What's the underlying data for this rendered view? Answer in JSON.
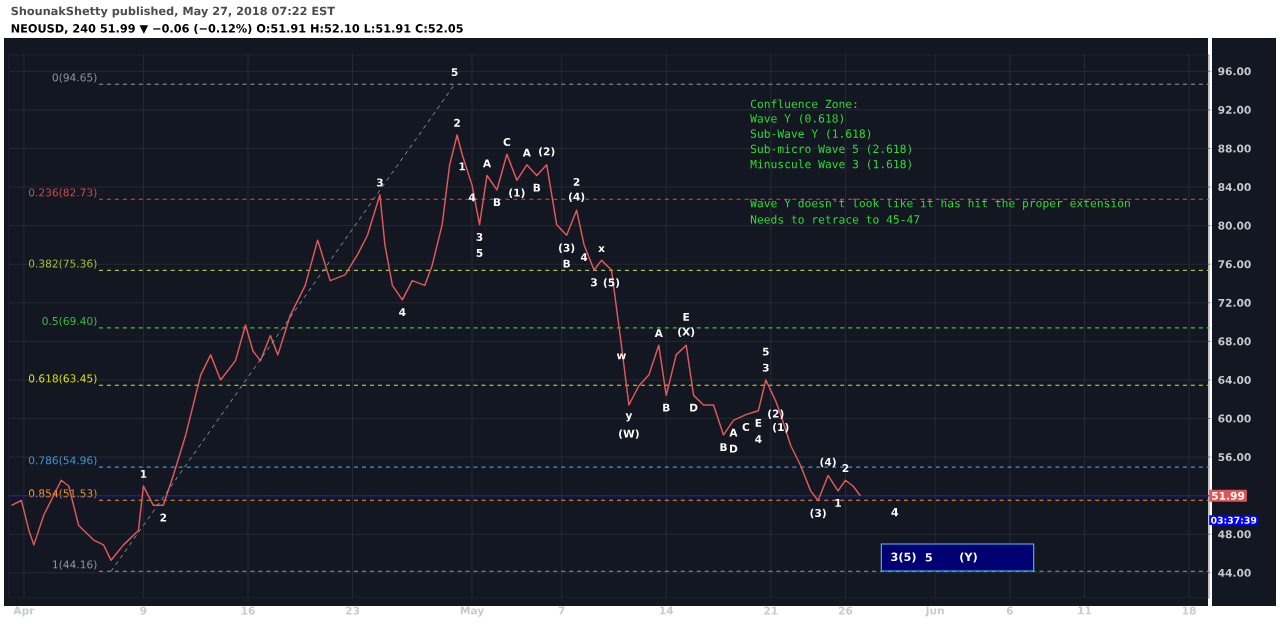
{
  "chart_data": {
    "type": "line",
    "title": "NEOUSD, 240  51.99 ▼ −0.06 (−0.12%)  O:51.91 H:52.10 L:51.91 C:52.05",
    "subtitle": "ShounakShetty published, May 27, 2018 07:22 EST",
    "x": [
      "2018-03-31T04:00",
      "2018-03-31T20:00",
      "2018-04-01T08:00",
      "2018-04-01T16:00",
      "2018-04-02T08:00",
      "2018-04-03T12:00",
      "2018-04-04T00:00",
      "2018-04-04T16:00",
      "2018-04-05T16:00",
      "2018-04-06T08:00",
      "2018-04-06T20:00",
      "2018-04-07T16:00",
      "2018-04-08T16:00",
      "2018-04-09T00:00",
      "2018-04-09T16:00",
      "2018-04-10T08:00",
      "2018-04-11T00:00",
      "2018-04-11T20:00",
      "2018-04-12T20:00",
      "2018-04-13T12:00",
      "2018-04-14T04:00",
      "2018-04-15T04:00",
      "2018-04-15T20:00",
      "2018-04-16T08:00",
      "2018-04-16T20:00",
      "2018-04-17T12:00",
      "2018-04-18T00:00",
      "2018-04-18T20:00",
      "2018-04-19T20:00",
      "2018-04-20T16:00",
      "2018-04-21T12:00",
      "2018-04-22T12:00",
      "2018-04-23T08:00",
      "2018-04-24T00:00",
      "2018-04-24T20:00",
      "2018-04-25T04:00",
      "2018-04-25T16:00",
      "2018-04-26T08:00",
      "2018-04-27T00:00",
      "2018-04-27T20:00",
      "2018-04-28T08:00",
      "2018-04-29T00:00",
      "2018-04-29T12:00",
      "2018-04-30T00:00",
      "2018-04-30T08:00",
      "2018-05-01T00:00",
      "2018-05-01T12:00",
      "2018-05-02T00:00",
      "2018-05-02T16:00",
      "2018-05-03T08:00",
      "2018-05-04T00:00",
      "2018-05-04T16:00",
      "2018-05-05T08:00",
      "2018-05-06T00:00",
      "2018-05-06T16:00",
      "2018-05-07T08:00",
      "2018-05-08T00:00",
      "2018-05-08T12:00",
      "2018-05-09T04:00",
      "2018-05-09T16:00",
      "2018-05-10T08:00",
      "2018-05-11T00:00",
      "2018-05-11T12:00",
      "2018-05-12T04:00",
      "2018-05-12T20:00",
      "2018-05-13T12:00",
      "2018-05-14T00:00",
      "2018-05-14T16:00",
      "2018-05-15T08:00",
      "2018-05-15T20:00",
      "2018-05-16T12:00",
      "2018-05-17T04:00",
      "2018-05-17T20:00",
      "2018-05-18T12:00",
      "2018-05-19T08:00",
      "2018-05-20T04:00",
      "2018-05-20T16:00",
      "2018-05-21T08:00",
      "2018-05-21T16:00",
      "2018-05-22T08:00",
      "2018-05-23T00:00",
      "2018-05-23T16:00",
      "2018-05-24T04:00",
      "2018-05-24T20:00",
      "2018-05-25T12:00",
      "2018-05-26T00:00",
      "2018-05-26T12:00",
      "2018-05-27T00:00"
    ],
    "series": [
      {
        "color": "#e05a5a",
        "values": [
          51.0,
          51.5,
          48.4,
          46.9,
          50.0,
          53.6,
          53.0,
          48.9,
          47.4,
          46.9,
          45.3,
          46.9,
          48.4,
          53.0,
          51.0,
          51.0,
          54.1,
          58.3,
          64.5,
          66.6,
          64.0,
          66.0,
          69.7,
          67.0,
          66.0,
          68.6,
          66.6,
          70.7,
          73.8,
          78.5,
          74.3,
          74.9,
          77.0,
          79.0,
          83.2,
          78.0,
          73.8,
          72.3,
          74.3,
          73.8,
          75.9,
          80.1,
          86.3,
          89.4,
          87.4,
          84.2,
          80.1,
          85.2,
          83.7,
          87.4,
          84.7,
          86.3,
          85.2,
          86.3,
          80.1,
          79.0,
          81.6,
          78.0,
          75.4,
          76.4,
          75.4,
          67.6,
          61.4,
          63.4,
          64.5,
          67.6,
          62.4,
          66.6,
          67.6,
          62.4,
          61.4,
          61.4,
          58.3,
          59.8,
          60.4,
          60.8,
          64.0,
          61.8,
          60.4,
          57.2,
          55.1,
          52.5,
          51.5,
          54.1,
          52.5,
          53.6,
          53.0,
          51.99
        ]
      },
      {
        "type": "line",
        "color": "#9598a1",
        "line_style": "dashed",
        "x": [
          "2018-04-06T20:00",
          "2018-04-29T20:00"
        ],
        "values": [
          44.16,
          94.65
        ]
      }
    ],
    "xlim": [
      "2018-03-31",
      "2018-06-19T08:00"
    ],
    "xticks": [
      {
        "value": "2018-04-01",
        "label": "Apr"
      },
      {
        "value": "2018-04-09",
        "label": "9"
      },
      {
        "value": "2018-04-16",
        "label": "16"
      },
      {
        "value": "2018-04-23",
        "label": "23"
      },
      {
        "value": "2018-05-01",
        "label": "May"
      },
      {
        "value": "2018-05-07",
        "label": "7"
      },
      {
        "value": "2018-05-14",
        "label": "14"
      },
      {
        "value": "2018-05-21",
        "label": "21"
      },
      {
        "value": "2018-05-26",
        "label": "26"
      },
      {
        "value": "2018-06-01",
        "label": "Jun"
      },
      {
        "value": "2018-06-06",
        "label": "6"
      },
      {
        "value": "2018-06-11",
        "label": "11"
      },
      {
        "value": "2018-06-18",
        "label": "18"
      }
    ],
    "ylim": [
      41.4,
      97.7
    ],
    "yticks": [
      {
        "value": 44,
        "label": "44.00"
      },
      {
        "value": 48,
        "label": "48.00"
      },
      {
        "value": 52,
        "label": null
      },
      {
        "value": 56,
        "label": "56.00"
      },
      {
        "value": 60,
        "label": "60.00"
      },
      {
        "value": 64,
        "label": "64.00"
      },
      {
        "value": 68,
        "label": "68.00"
      },
      {
        "value": 72,
        "label": "72.00"
      },
      {
        "value": 76,
        "label": "76.00"
      },
      {
        "value": 80,
        "label": "80.00"
      },
      {
        "value": 84,
        "label": "84.00"
      },
      {
        "value": 88,
        "label": "88.00"
      },
      {
        "value": 92,
        "label": "92.00"
      },
      {
        "value": 96,
        "label": "96.00"
      }
    ],
    "grid": true,
    "marker": "none",
    "line_style": "solid",
    "ref_lines": [
      {
        "axis": "y",
        "value": 94.65,
        "label": "0(94.65)",
        "color": "#9598a1",
        "line_style": "dashed"
      },
      {
        "axis": "y",
        "value": 82.73,
        "label": "0.236(82.73)",
        "color": "#e04848",
        "line_style": "dashed"
      },
      {
        "axis": "y",
        "value": 75.36,
        "label": "0.382(75.36)",
        "color": "#a8c43a",
        "line_style": "dashed"
      },
      {
        "axis": "y",
        "value": 69.4,
        "label": "0.5(69.40)",
        "color": "#3cc43c",
        "line_style": "dashed"
      },
      {
        "axis": "y",
        "value": 63.45,
        "label": "0.618(63.45)",
        "color": "#e8e800",
        "line_style": "dashed"
      },
      {
        "axis": "y",
        "value": 54.96,
        "label": "0.786(54.96)",
        "color": "#3d9bd6",
        "line_style": "dashed"
      },
      {
        "axis": "y",
        "value": 51.53,
        "label": "0.854(51.53)",
        "color": "#f39c12",
        "line_style": "dashed"
      },
      {
        "axis": "y",
        "value": 44.16,
        "label": "1(44.16)",
        "color": "#9598a1",
        "line_style": "dashed"
      },
      {
        "axis": "y",
        "value": 51.99,
        "label": "51.99",
        "color": "#2020ff",
        "line_style": "dotted"
      }
    ],
    "bands": [
      {
        "axis": "y",
        "from": 44.2,
        "to": 47.0,
        "color": "#000073"
      }
    ],
    "annotations": [
      "Confluence Zone:",
      "Wave Y (0.618)",
      "Sub-Wave Y (1.618)",
      "Sub-micro Wave 5 (2.618)",
      "Minuscule Wave 3 (1.618)",
      "Wave Y doesn't look like it has hit the proper extension",
      "Needs to retrace to 45-47",
      "03:37:39",
      "4",
      "3(5)",
      "5",
      "(Y)",
      {
        "text": "1",
        "x": "2018-04-09T00:00",
        "y": 53.0
      },
      {
        "text": "2",
        "x": "2018-04-10T08:00",
        "y": 51.0
      },
      {
        "text": "3",
        "x": "2018-04-24T20:00",
        "y": 83.2
      },
      {
        "text": "4",
        "x": "2018-04-26T08:00",
        "y": 72.3
      },
      {
        "text": "5",
        "x": "2018-04-29T20:00",
        "y": 94.65
      },
      {
        "text": "2",
        "x": "2018-04-30T00:00",
        "y": 89.4
      },
      {
        "text": "1",
        "x": "2018-04-30T08:00",
        "y": 87.4
      },
      {
        "text": "4",
        "x": "2018-05-01T00:00",
        "y": 84.2
      },
      {
        "text": "3",
        "x": "2018-05-01T12:00",
        "y": 80.1
      },
      {
        "text": "5",
        "x": "2018-05-01T12:00",
        "y": 80.1
      },
      {
        "text": "A",
        "x": "2018-05-02T00:00",
        "y": 85.2
      },
      {
        "text": "B",
        "x": "2018-05-02T16:00",
        "y": 83.7
      },
      {
        "text": "C",
        "x": "2018-05-03T08:00",
        "y": 87.4
      },
      {
        "text": "(1)",
        "x": "2018-05-04T00:00",
        "y": 84.7
      },
      {
        "text": "A",
        "x": "2018-05-04T16:00",
        "y": 86.3
      },
      {
        "text": "B",
        "x": "2018-05-05T08:00",
        "y": 85.2
      },
      {
        "text": "(2)",
        "x": "2018-05-06T00:00",
        "y": 86.3
      },
      {
        "text": "(3)",
        "x": "2018-05-07T08:00",
        "y": 79.0
      },
      {
        "text": "B",
        "x": "2018-05-07T08:00",
        "y": 79.0
      },
      {
        "text": "(4)",
        "x": "2018-05-08T00:00",
        "y": 81.6
      },
      {
        "text": "2",
        "x": "2018-05-08T00:00",
        "y": 81.6
      },
      {
        "text": "4",
        "x": "2018-05-08T12:00",
        "y": 78.0
      },
      {
        "text": "3",
        "x": "2018-05-09T04:00",
        "y": 75.4
      },
      {
        "text": "x",
        "x": "2018-05-09T16:00",
        "y": 76.4
      },
      {
        "text": "(5)",
        "x": "2018-05-10T08:00",
        "y": 75.4
      },
      {
        "text": "w",
        "x": "2018-05-11T00:00",
        "y": 67.6
      },
      {
        "text": "y",
        "x": "2018-05-11T12:00",
        "y": 61.4
      },
      {
        "text": "(W)",
        "x": "2018-05-11T12:00",
        "y": 61.4
      },
      {
        "text": "A",
        "x": "2018-05-13T12:00",
        "y": 67.6
      },
      {
        "text": "B",
        "x": "2018-05-14T00:00",
        "y": 62.4
      },
      {
        "text": "(X)",
        "x": "2018-05-15T08:00",
        "y": 67.6
      },
      {
        "text": "E",
        "x": "2018-05-15T08:00",
        "y": 67.6
      },
      {
        "text": "D",
        "x": "2018-05-15T20:00",
        "y": 62.4
      },
      {
        "text": "B",
        "x": "2018-05-17T20:00",
        "y": 58.3
      },
      {
        "text": "A",
        "x": "2018-05-18T12:00",
        "y": 59.8
      },
      {
        "text": "D",
        "x": "2018-05-18T12:00",
        "y": 59.8
      },
      {
        "text": "C",
        "x": "2018-05-19T08:00",
        "y": 60.4
      },
      {
        "text": "E",
        "x": "2018-05-20T04:00",
        "y": 60.8
      },
      {
        "text": "4",
        "x": "2018-05-20T04:00",
        "y": 60.8
      },
      {
        "text": "3",
        "x": "2018-05-20T16:00",
        "y": 64.0
      },
      {
        "text": "5",
        "x": "2018-05-20T16:00",
        "y": 64.0
      },
      {
        "text": "(2)",
        "x": "2018-05-21T08:00",
        "y": 61.8
      },
      {
        "text": "(1)",
        "x": "2018-05-21T16:00",
        "y": 60.4
      },
      {
        "text": "(3)",
        "x": "2018-05-24T04:00",
        "y": 51.5
      },
      {
        "text": "(4)",
        "x": "2018-05-24T20:00",
        "y": 54.1
      },
      {
        "text": "1",
        "x": "2018-05-25T12:00",
        "y": 52.5
      },
      {
        "text": "2",
        "x": "2018-05-26T00:00",
        "y": 53.6
      }
    ]
  }
}
